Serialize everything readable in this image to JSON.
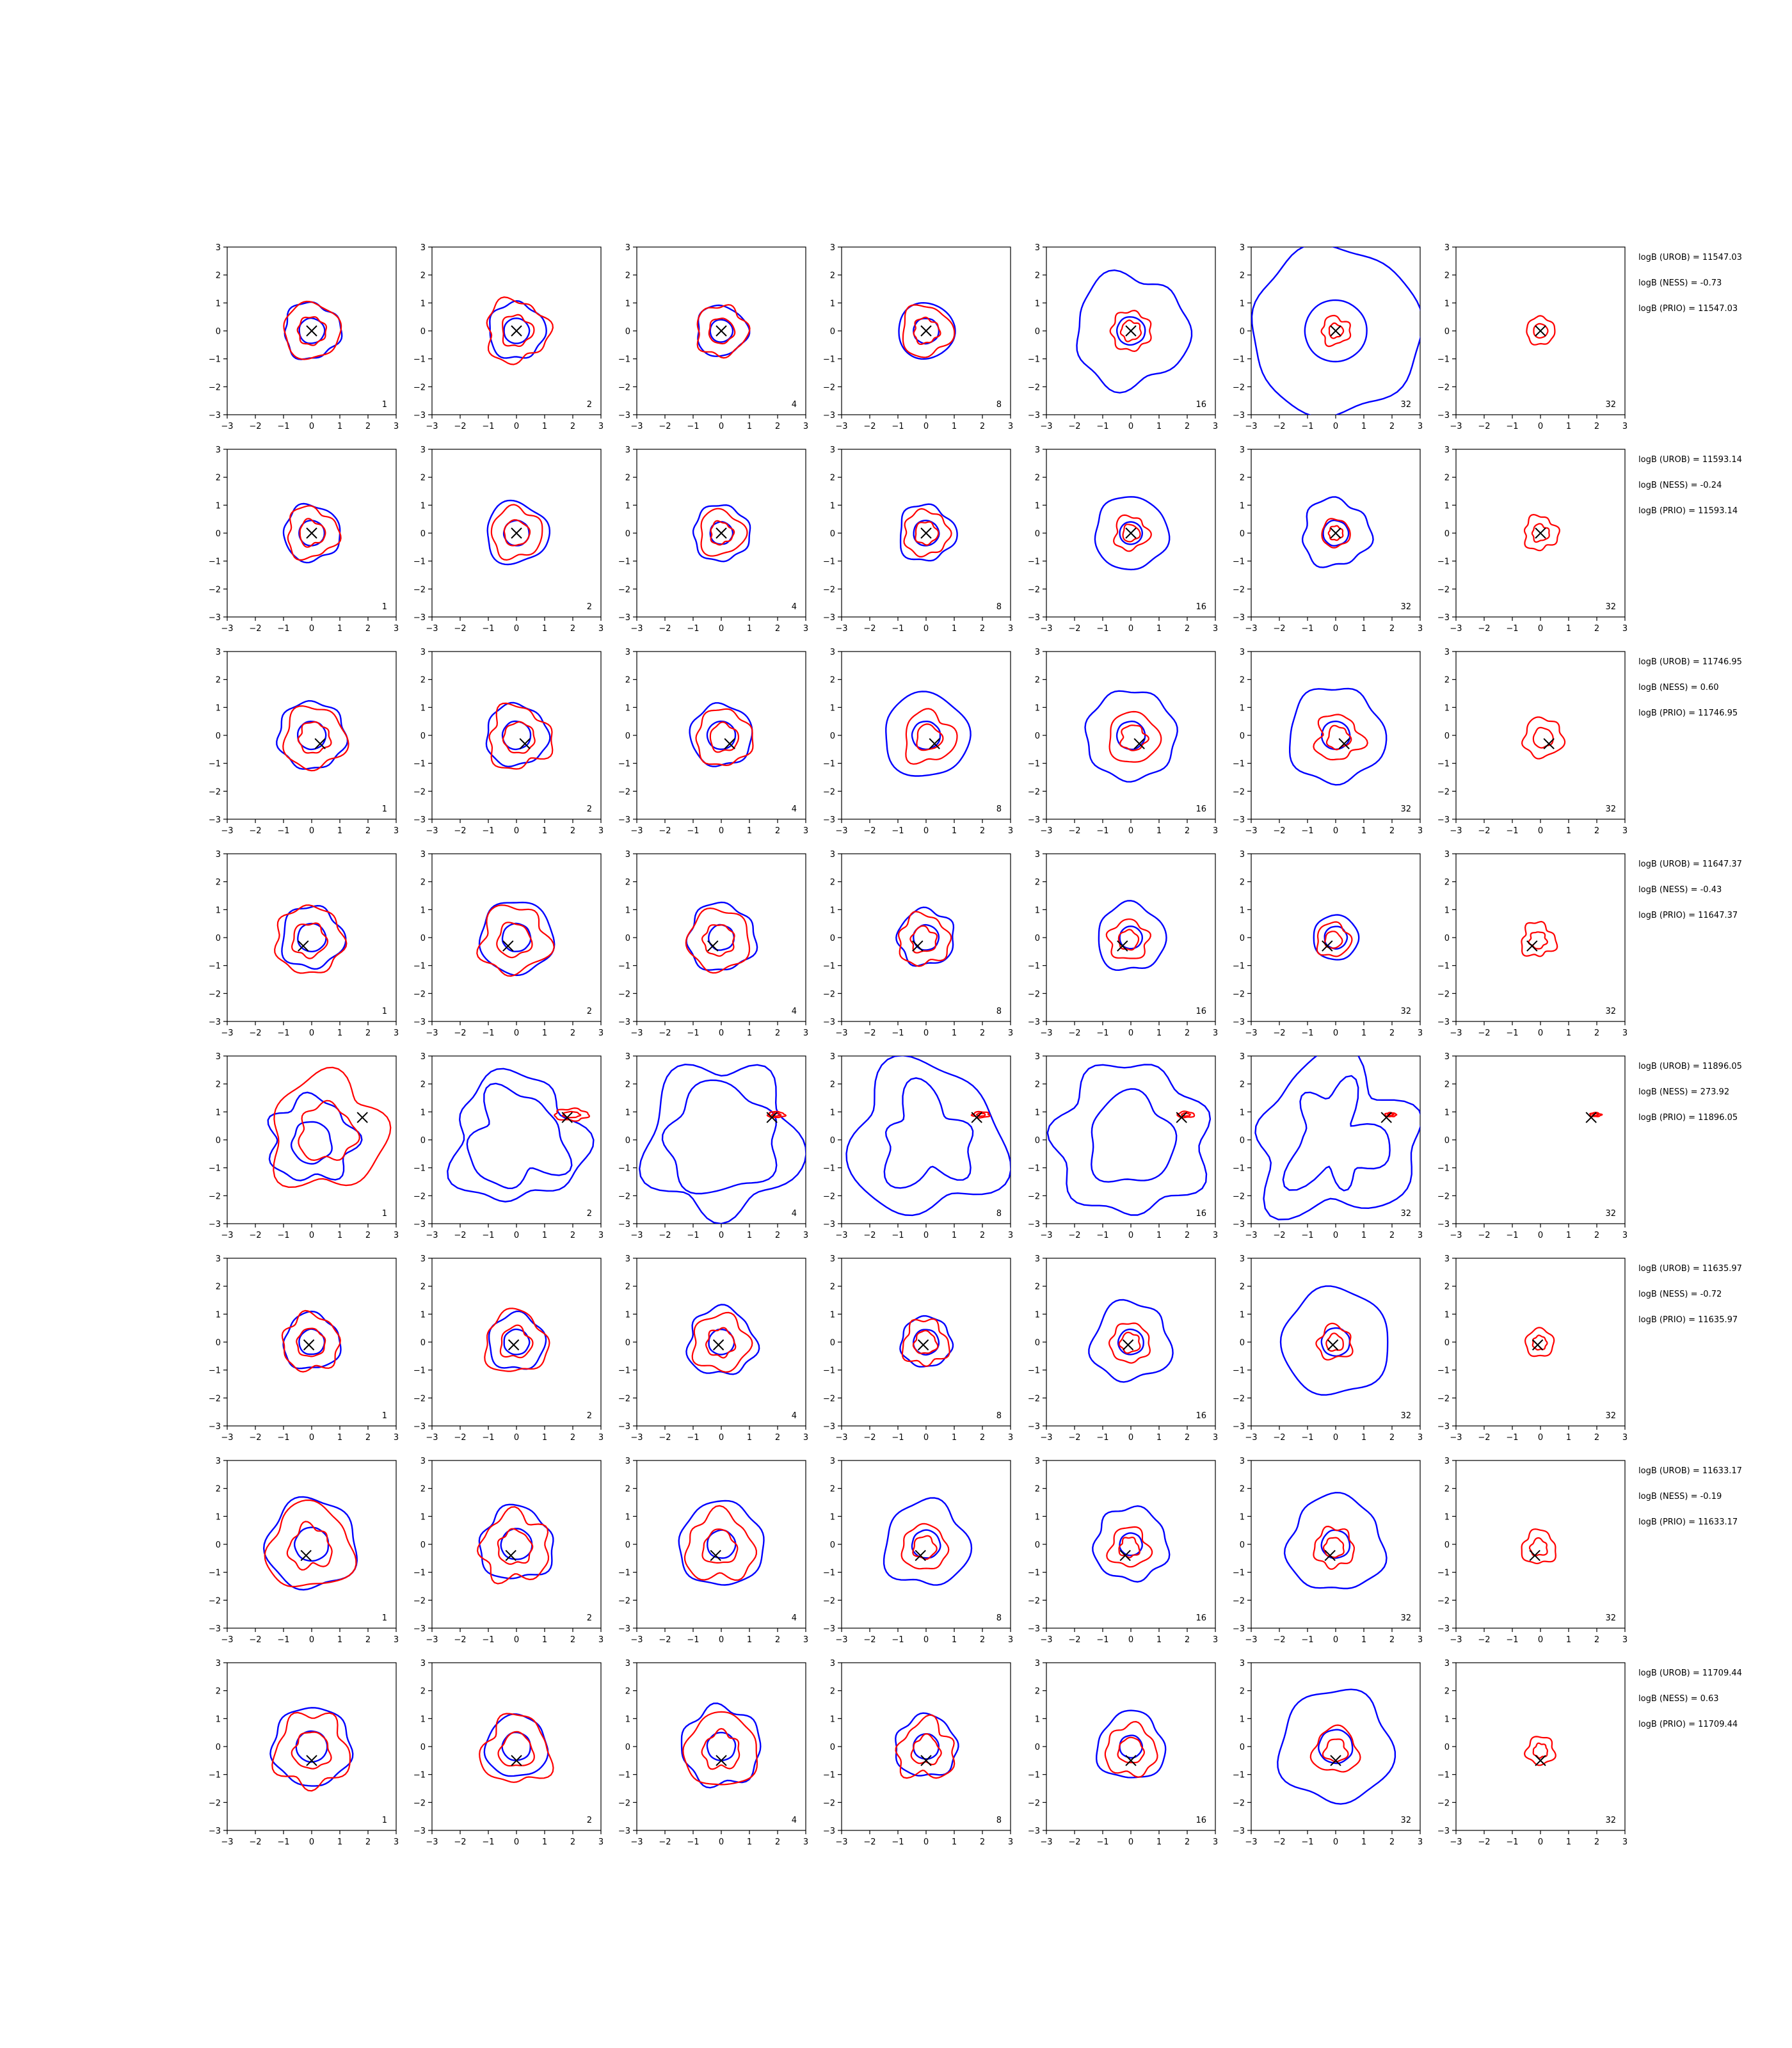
{
  "chart_data": {
    "type": "contour-grid",
    "rows": 8,
    "cols": 7,
    "panel_labels": [
      "1",
      "2",
      "4",
      "8",
      "16",
      "32",
      "32"
    ],
    "xlim": [
      -3,
      3
    ],
    "ylim": [
      -3,
      3
    ],
    "xticks": [
      "−3",
      "−2",
      "−1",
      "0",
      "1",
      "2",
      "3"
    ],
    "yticks": [
      "3",
      "2",
      "1",
      "0",
      "−1",
      "−2",
      "−3"
    ],
    "colors": {
      "blue": "#0000ff",
      "red": "#ff0000",
      "marker": "#000000"
    },
    "row_annotations": [
      [
        "logB (UROB) = 11547.03",
        "logB (NESS) = -0.73",
        "logB (PRIO) = 11547.03"
      ],
      [
        "logB (UROB) = 11593.14",
        "logB (NESS) = -0.24",
        "logB (PRIO) = 11593.14"
      ],
      [
        "logB (UROB) = 11746.95",
        "logB (NESS) = 0.60",
        "logB (PRIO) = 11746.95"
      ],
      [
        "logB (UROB) = 11647.37",
        "logB (NESS) = -0.43",
        "logB (PRIO) = 11647.37"
      ],
      [
        "logB (UROB) = 11896.05",
        "logB (NESS) = 273.92",
        "logB (PRIO) = 11896.05"
      ],
      [
        "logB (UROB) = 11635.97",
        "logB (NESS) = -0.72",
        "logB (PRIO) = 11635.97"
      ],
      [
        "logB (UROB) = 11633.17",
        "logB (NESS) = -0.19",
        "logB (PRIO) = 11633.17"
      ],
      [
        "logB (UROB) = 11709.44",
        "logB (NESS) = 0.63",
        "logB (PRIO) = 11709.44"
      ]
    ],
    "markers": [
      {
        "x": 0.0,
        "y": 0.0
      },
      {
        "x": 0.0,
        "y": 0.0
      },
      {
        "x": 0.3,
        "y": -0.3
      },
      {
        "x": -0.3,
        "y": -0.3
      },
      {
        "x": 1.8,
        "y": 0.8
      },
      {
        "x": -0.1,
        "y": -0.1
      },
      {
        "x": -0.2,
        "y": -0.4
      },
      {
        "x": 0.0,
        "y": -0.5
      }
    ],
    "blue_outer_radius": [
      [
        1.0,
        1.0,
        0.9,
        1.0,
        2.0,
        3.0,
        0
      ],
      [
        1.0,
        1.1,
        1.0,
        1.0,
        1.3,
        1.2,
        0
      ],
      [
        1.2,
        1.1,
        1.1,
        1.5,
        1.6,
        1.7,
        0
      ],
      [
        1.1,
        1.3,
        1.2,
        1.0,
        1.2,
        0.8,
        0
      ],
      [
        1.5,
        2.3,
        2.7,
        2.7,
        2.7,
        2.8,
        0
      ],
      [
        1.0,
        1.0,
        1.2,
        0.9,
        1.4,
        1.9,
        0
      ],
      [
        1.6,
        1.3,
        1.5,
        1.5,
        1.3,
        1.7,
        0
      ],
      [
        1.4,
        1.1,
        1.4,
        1.1,
        1.2,
        2.0,
        0
      ]
    ],
    "blue_inner_radius": [
      [
        0.45,
        0.45,
        0.4,
        0.45,
        0.5,
        1.1,
        0
      ],
      [
        0.45,
        0.45,
        0.4,
        0.45,
        0.4,
        0.45,
        0
      ],
      [
        0.5,
        0.5,
        0.5,
        0.5,
        0.5,
        0.5,
        0
      ],
      [
        0.5,
        0.5,
        0.45,
        0.45,
        0.4,
        0.4,
        0
      ],
      [
        0.7,
        0,
        0,
        0,
        0,
        0,
        0
      ],
      [
        0.45,
        0.45,
        0.45,
        0.45,
        0.45,
        0.5,
        0
      ],
      [
        0.6,
        0.55,
        0.5,
        0.5,
        0.4,
        0.5,
        0
      ],
      [
        0.55,
        0.5,
        0.5,
        0.45,
        0.4,
        0.6,
        0
      ]
    ],
    "red_outer_radius": [
      [
        1.0,
        1.1,
        0.9,
        0.9,
        0.7,
        0.5,
        0.5
      ],
      [
        0.9,
        0.9,
        0.8,
        0.8,
        0.6,
        0.5,
        0.6
      ],
      [
        1.1,
        1.1,
        1.0,
        0.9,
        0.9,
        0.8,
        0.7
      ],
      [
        1.2,
        1.2,
        1.1,
        0.9,
        0.7,
        0.6,
        0.6
      ],
      [
        2.0,
        0.6,
        0.3,
        0.3,
        0.3,
        0.2,
        0.2
      ],
      [
        1.0,
        1.1,
        1.0,
        0.8,
        0.7,
        0.6,
        0.5
      ],
      [
        1.5,
        1.2,
        1.2,
        0.8,
        0.7,
        0.7,
        0.6
      ],
      [
        1.3,
        1.2,
        1.3,
        1.0,
        0.9,
        0.8,
        0.5
      ]
    ]
  }
}
